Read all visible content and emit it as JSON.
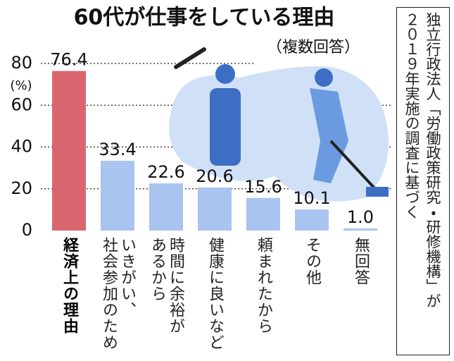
{
  "chart_data": {
    "type": "bar",
    "title": "60代が仕事をしている理由",
    "subtitle": "（複数回答）",
    "y_unit": "(%)",
    "source": "独立行政法人「労働政策研究・研修機構」が\n２０１９年実施の調査に基づく",
    "categories": [
      "経済上の理由",
      "いきがい、\n社会参加のため",
      "時間に余裕が\nあるから",
      "健康に良いなど",
      "頼まれたから",
      "その他",
      "無回答"
    ],
    "values": [
      76.4,
      33.4,
      22.6,
      20.6,
      15.6,
      10.1,
      1.0
    ],
    "value_labels": [
      "76.4",
      "33.4",
      "22.6",
      "20.6",
      "15.6",
      "10.1",
      "1.0"
    ],
    "colors": [
      "#d9666e",
      "#a8c4ef",
      "#a8c4ef",
      "#a8c4ef",
      "#a8c4ef",
      "#a8c4ef",
      "#a8c4ef"
    ],
    "ylim": [
      0,
      80
    ],
    "yticks": [
      0,
      20,
      40,
      60,
      80
    ],
    "grid": true
  }
}
